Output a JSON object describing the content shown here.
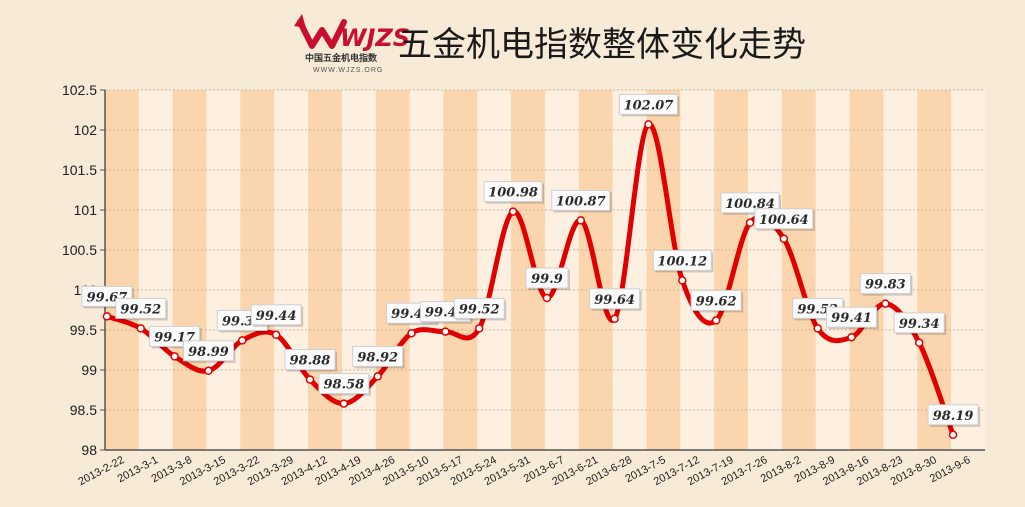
{
  "logo": {
    "mark_text": "WJZS",
    "subtitle": "中国五金机电指数",
    "url": "WWW.WJZS.ORG"
  },
  "colors": {
    "background": "#f7ead6",
    "band_orange": "#fbd5ad",
    "band_light": "#fdf0e0",
    "line": "#e00000",
    "axis": "#555555"
  },
  "chart_data": {
    "type": "line",
    "title": "五金机电指数整体变化走势",
    "xlabel": "",
    "ylabel": "",
    "ylim": [
      98,
      102.5
    ],
    "yticks": [
      98,
      98.5,
      99,
      99.5,
      100,
      100.5,
      101,
      101.5,
      102,
      102.5
    ],
    "ytick_labels": [
      "98",
      "98.5",
      "99",
      "99.5",
      "100",
      "100.5",
      "101",
      "101.5",
      "102",
      "102.5"
    ],
    "grid": true,
    "legend": "none",
    "categories": [
      "2013-2-22",
      "2013-3-1",
      "2013-3-8",
      "2013-3-15",
      "2013-3-22",
      "2013-3-29",
      "2013-4-12",
      "2013-4-19",
      "2013-4-26",
      "2013-5-10",
      "2013-5-17",
      "2013-5-24",
      "2013-5-31",
      "2013-6-7",
      "2013-6-21",
      "2013-6-28",
      "2013-7-5",
      "2013-7-12",
      "2013-7-19",
      "2013-7-26",
      "2013-8-2",
      "2013-8-9",
      "2013-8-16",
      "2013-8-23",
      "2013-8-30",
      "2013-9-6"
    ],
    "values": [
      99.67,
      99.52,
      99.17,
      98.99,
      99.37,
      99.44,
      98.88,
      98.58,
      98.92,
      99.46,
      99.48,
      99.52,
      100.98,
      99.9,
      100.87,
      99.64,
      102.07,
      100.12,
      99.62,
      100.84,
      100.64,
      99.52,
      99.41,
      99.83,
      99.34,
      98.19
    ],
    "data_labels": [
      "99.67",
      "99.52",
      "99.17",
      "98.99",
      "99.37",
      "99.44",
      "98.88",
      "98.58",
      "98.92",
      "99.46",
      "99.48",
      "99.52",
      "100.98",
      "99.9",
      "100.87",
      "99.64",
      "102.07",
      "100.12",
      "99.62",
      "100.84",
      "100.64",
      "99.52",
      "99.41",
      "99.83",
      "99.34",
      "98.19"
    ]
  }
}
